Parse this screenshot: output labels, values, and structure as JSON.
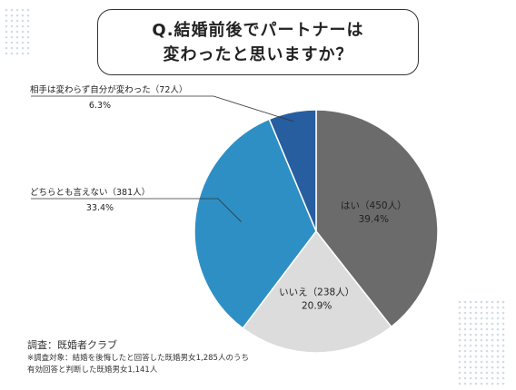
{
  "title": {
    "line1": "Q.結婚前後でパートナーは",
    "line2": "変わったと思いますか？"
  },
  "chart_data": {
    "type": "pie",
    "start_angle_deg": 0,
    "direction": "clockwise",
    "slices": [
      {
        "label": "はい（450人）",
        "percent_label": "39.4%",
        "value": 39.4,
        "color": "#6b6b6b"
      },
      {
        "label": "いいえ（238人）",
        "percent_label": "20.9%",
        "value": 20.9,
        "color": "#dcdcdc"
      },
      {
        "label": "どちらとも言えない（381人）",
        "percent_label": "33.4%",
        "value": 33.4,
        "color": "#2e8fc4"
      },
      {
        "label": "相手は変わらず自分が変わった（72人）",
        "percent_label": "6.3%",
        "value": 6.3,
        "color": "#275ea0"
      }
    ]
  },
  "footer": {
    "source": "調査：既婚者クラブ",
    "note_line1": "※調査対象：結婚を後悔したと回答した既婚男女1,285人のうち",
    "note_line2": "有効回答と判断した既婚男女1,141人"
  },
  "colors": {
    "decor_dots": "#d3dbe6",
    "leader_line": "#333333"
  }
}
